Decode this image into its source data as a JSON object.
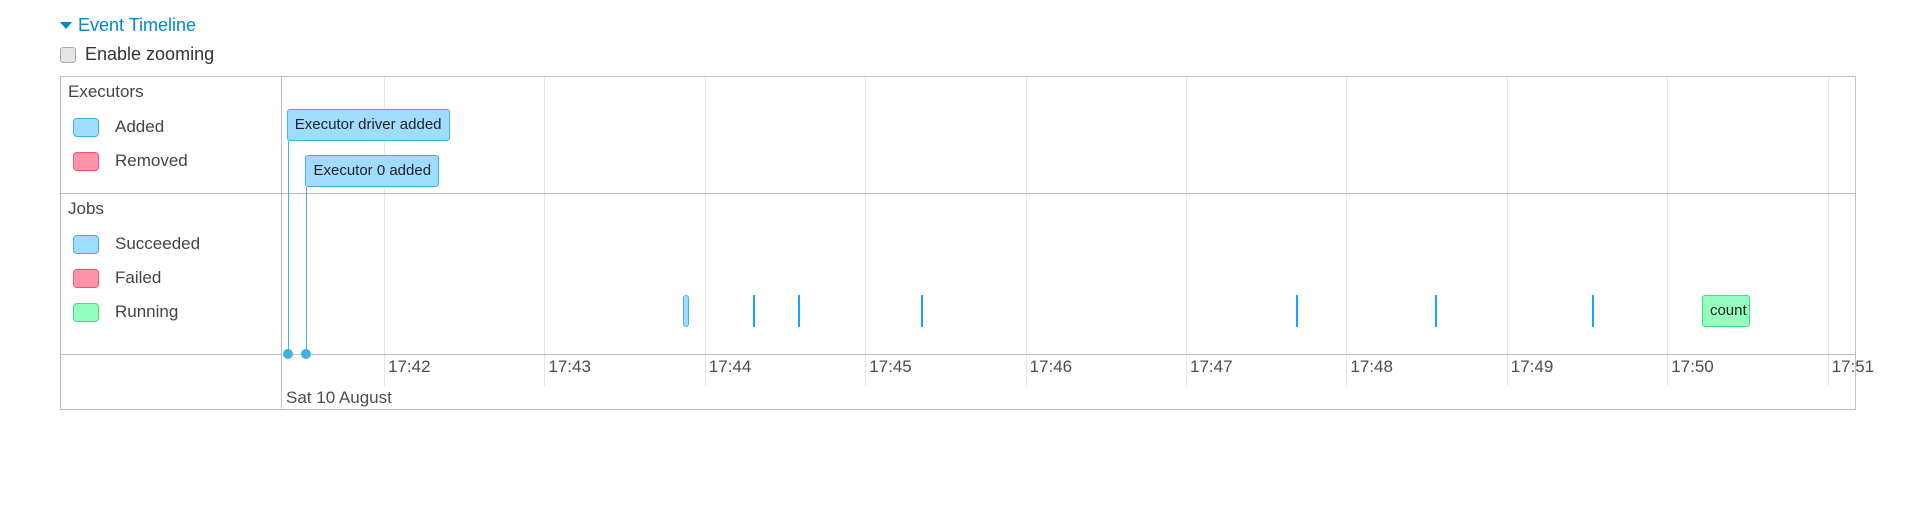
{
  "header": {
    "title": "Event Timeline",
    "enable_zooming_label": "Enable zooming",
    "enable_zooming_checked": false
  },
  "groups": [
    {
      "label": "Executors",
      "legend": [
        {
          "label": "Added",
          "color": "#a0dcff",
          "border": "#3fb1e3"
        },
        {
          "label": "Removed",
          "color": "#ff94a8",
          "border": "#ff4f6d"
        }
      ]
    },
    {
      "label": "Jobs",
      "legend": [
        {
          "label": "Succeeded",
          "color": "#a0dcff",
          "border": "#3fb1e3"
        },
        {
          "label": "Failed",
          "color": "#ff94a8",
          "border": "#ff4f6d"
        },
        {
          "label": "Running",
          "color": "#95ffc0",
          "border": "#3fdf7e"
        }
      ]
    }
  ],
  "axis": {
    "date_label": "Sat 10 August",
    "ticks": [
      "17:42",
      "17:43",
      "17:44",
      "17:45",
      "17:46",
      "17:47",
      "17:48",
      "17:49",
      "17:50",
      "17:51"
    ]
  },
  "executor_events": [
    {
      "label": "Executor driver added",
      "time": "17:41:24"
    },
    {
      "label": "Executor 0 added",
      "time": "17:41:31"
    }
  ],
  "jobs": [
    {
      "status": "succeeded",
      "start": "17:43:52",
      "end": "17:43:54"
    },
    {
      "status": "succeeded",
      "start": "17:44:18",
      "end": "17:44:18"
    },
    {
      "status": "succeeded",
      "start": "17:44:35",
      "end": "17:44:35"
    },
    {
      "status": "succeeded",
      "start": "17:45:21",
      "end": "17:45:21"
    },
    {
      "status": "succeeded",
      "start": "17:47:41",
      "end": "17:47:42"
    },
    {
      "status": "succeeded",
      "start": "17:48:33",
      "end": "17:48:33"
    },
    {
      "status": "succeeded",
      "start": "17:49:32",
      "end": "17:49:32"
    },
    {
      "status": "running",
      "start": "17:50:13",
      "end": "17:50:31",
      "label": "count"
    }
  ]
}
